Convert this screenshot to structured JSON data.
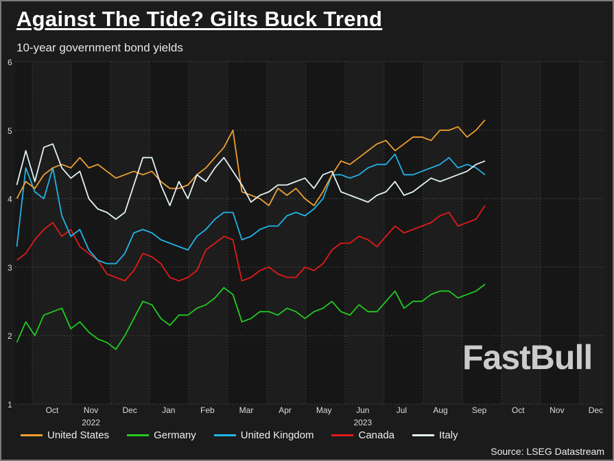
{
  "header": {
    "title": "Against The Tide? Gilts Buck Trend",
    "subtitle": "10-year government bond yields"
  },
  "source": "Source: LSEG Datastream",
  "watermark": "FastBull",
  "chart_data": {
    "type": "line",
    "title": "Against The Tide? Gilts Buck Trend",
    "subtitle": "10-year government bond yields",
    "ylim": [
      1,
      6
    ],
    "yticks": [
      1,
      2,
      3,
      4,
      5,
      6
    ],
    "xlim": [
      "2022-09-19",
      "2023-12-31"
    ],
    "xtick_labels": [
      "Oct",
      "Nov",
      "Dec",
      "Jan",
      "Feb",
      "Mar",
      "Apr",
      "May",
      "Jun",
      "Jul",
      "Aug",
      "Sep",
      "Oct",
      "Nov",
      "Dec"
    ],
    "year_labels": [
      {
        "label": "2022",
        "month": "Nov"
      },
      {
        "label": "2023",
        "month": "Jun"
      }
    ],
    "grid": true,
    "legend": "bottom",
    "x": [
      "2022-09-19",
      "2022-09-26",
      "2022-10-03",
      "2022-10-10",
      "2022-10-17",
      "2022-10-24",
      "2022-10-31",
      "2022-11-07",
      "2022-11-14",
      "2022-11-21",
      "2022-11-28",
      "2022-12-05",
      "2022-12-12",
      "2022-12-19",
      "2022-12-26",
      "2023-01-02",
      "2023-01-09",
      "2023-01-16",
      "2023-01-23",
      "2023-01-30",
      "2023-02-06",
      "2023-02-13",
      "2023-02-20",
      "2023-02-27",
      "2023-03-06",
      "2023-03-13",
      "2023-03-20",
      "2023-03-27",
      "2023-04-03",
      "2023-04-10",
      "2023-04-17",
      "2023-04-24",
      "2023-05-01",
      "2023-05-08",
      "2023-05-15",
      "2023-05-22",
      "2023-05-29",
      "2023-06-05",
      "2023-06-12",
      "2023-06-19",
      "2023-06-26",
      "2023-07-03",
      "2023-07-10",
      "2023-07-17",
      "2023-07-24",
      "2023-07-31",
      "2023-08-07",
      "2023-08-14",
      "2023-08-21",
      "2023-08-28",
      "2023-09-04",
      "2023-09-11",
      "2023-09-18"
    ],
    "series": [
      {
        "name": "United States",
        "color": "#f0a030",
        "values": [
          4.0,
          4.25,
          4.15,
          4.35,
          4.45,
          4.5,
          4.45,
          4.6,
          4.45,
          4.5,
          4.4,
          4.3,
          4.35,
          4.4,
          4.35,
          4.4,
          4.25,
          4.15,
          4.15,
          4.2,
          4.35,
          4.45,
          4.6,
          4.75,
          5.0,
          4.1,
          4.05,
          4.0,
          3.9,
          4.15,
          4.05,
          4.15,
          4.0,
          3.9,
          4.1,
          4.35,
          4.55,
          4.5,
          4.6,
          4.7,
          4.8,
          4.85,
          4.7,
          4.8,
          4.9,
          4.9,
          4.85,
          5.0,
          5.0,
          5.05,
          4.9,
          5.0,
          5.15
        ]
      },
      {
        "name": "Germany",
        "color": "#22cc22",
        "values": [
          1.9,
          2.2,
          2.0,
          2.3,
          2.35,
          2.4,
          2.1,
          2.2,
          2.05,
          1.95,
          1.9,
          1.8,
          2.0,
          2.25,
          2.5,
          2.45,
          2.25,
          2.15,
          2.3,
          2.3,
          2.4,
          2.45,
          2.55,
          2.7,
          2.6,
          2.2,
          2.25,
          2.35,
          2.35,
          2.3,
          2.4,
          2.35,
          2.25,
          2.35,
          2.4,
          2.5,
          2.35,
          2.3,
          2.45,
          2.35,
          2.35,
          2.5,
          2.65,
          2.4,
          2.5,
          2.5,
          2.6,
          2.65,
          2.65,
          2.55,
          2.6,
          2.65,
          2.75
        ]
      },
      {
        "name": "United Kingdom",
        "color": "#22b4e6",
        "values": [
          3.3,
          4.45,
          4.1,
          4.0,
          4.45,
          3.75,
          3.45,
          3.55,
          3.25,
          3.1,
          3.05,
          3.05,
          3.2,
          3.5,
          3.55,
          3.5,
          3.4,
          3.35,
          3.3,
          3.25,
          3.45,
          3.55,
          3.7,
          3.8,
          3.8,
          3.4,
          3.45,
          3.55,
          3.6,
          3.6,
          3.75,
          3.8,
          3.75,
          3.85,
          4.0,
          4.35,
          4.35,
          4.3,
          4.35,
          4.45,
          4.5,
          4.5,
          4.65,
          4.35,
          4.35,
          4.4,
          4.45,
          4.5,
          4.6,
          4.45,
          4.5,
          4.45,
          4.35
        ]
      },
      {
        "name": "Canada",
        "color": "#e01a1a",
        "values": [
          3.1,
          3.2,
          3.4,
          3.55,
          3.65,
          3.45,
          3.55,
          3.3,
          3.2,
          3.1,
          2.9,
          2.85,
          2.8,
          2.95,
          3.2,
          3.15,
          3.05,
          2.85,
          2.8,
          2.85,
          2.95,
          3.25,
          3.35,
          3.45,
          3.4,
          2.8,
          2.85,
          2.95,
          3.0,
          2.9,
          2.85,
          2.85,
          3.0,
          2.95,
          3.05,
          3.25,
          3.35,
          3.35,
          3.45,
          3.4,
          3.3,
          3.45,
          3.6,
          3.5,
          3.55,
          3.6,
          3.65,
          3.75,
          3.8,
          3.6,
          3.65,
          3.7,
          3.9
        ]
      },
      {
        "name": "Italy",
        "color": "#e4f4f8",
        "values": [
          4.2,
          4.7,
          4.25,
          4.75,
          4.8,
          4.45,
          4.3,
          4.4,
          4.0,
          3.85,
          3.8,
          3.7,
          3.8,
          4.2,
          4.6,
          4.6,
          4.2,
          3.9,
          4.25,
          4.0,
          4.35,
          4.25,
          4.45,
          4.6,
          4.4,
          4.2,
          3.95,
          4.05,
          4.1,
          4.2,
          4.2,
          4.25,
          4.3,
          4.15,
          4.35,
          4.4,
          4.1,
          4.05,
          4.0,
          3.95,
          4.05,
          4.1,
          4.25,
          4.05,
          4.1,
          4.2,
          4.3,
          4.25,
          4.3,
          4.35,
          4.4,
          4.5,
          4.55
        ]
      }
    ]
  }
}
